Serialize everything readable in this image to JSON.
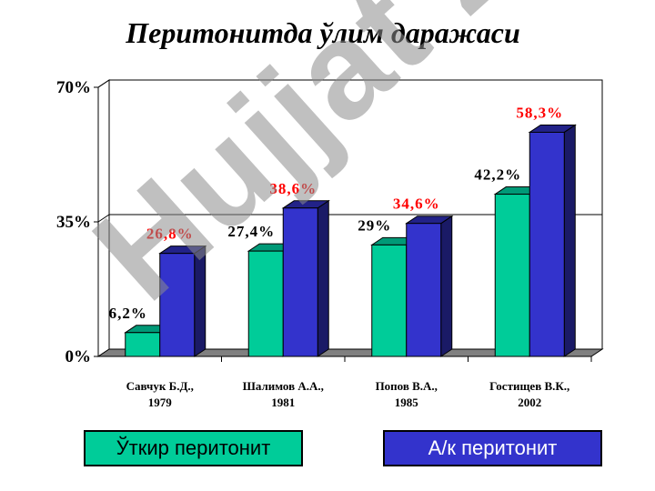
{
  "title": "Перитонитда ўлим даражаси",
  "watermark": "Hujjat 24",
  "legend": {
    "acute": "Ўткир перитонит",
    "ak": "А/к перитонит"
  },
  "colors": {
    "acute": "#00cc99",
    "ak": "#3333cc",
    "label_acute": "#000000",
    "label_ak": "#ff0000"
  },
  "chart_data": {
    "type": "bar",
    "title": "Перитонитда ўлим даражаси",
    "categories": [
      [
        "Савчук Б.Д.,",
        "1979"
      ],
      [
        "Шалимов А.А.,",
        "1981"
      ],
      [
        "Попов В.А.,",
        "1985"
      ],
      [
        "Гостищев В.К.,",
        "2002"
      ]
    ],
    "series": [
      {
        "name": "Ўткир перитонит",
        "values": [
          6.2,
          27.4,
          29,
          42.2
        ],
        "labels": [
          "6,2%",
          "27,4%",
          "29%",
          "42,2%"
        ]
      },
      {
        "name": "А/к перитонит",
        "values": [
          26.8,
          38.6,
          34.6,
          58.3
        ],
        "labels": [
          "26,8%",
          "38,6%",
          "34,6%",
          "58,3%"
        ]
      }
    ],
    "yticks": [
      "0%",
      "35%",
      "70%"
    ],
    "ylim": [
      0,
      70
    ],
    "grid": true,
    "legend_position": "bottom"
  }
}
